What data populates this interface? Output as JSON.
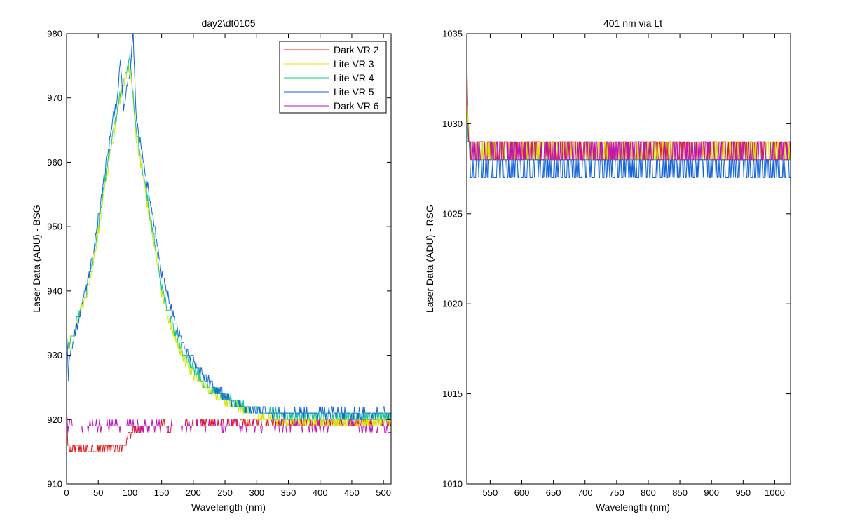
{
  "chart_data": [
    {
      "type": "line",
      "title": "day2\\dt0105",
      "xlabel": "Wavelength (nm)",
      "ylabel": "Laser Data (ADU) - BSG",
      "xlim": [
        0,
        512
      ],
      "ylim": [
        910,
        980
      ],
      "xticks": [
        0,
        50,
        100,
        150,
        200,
        250,
        300,
        350,
        400,
        450,
        500
      ],
      "yticks": [
        910,
        920,
        930,
        940,
        950,
        960,
        970,
        980
      ],
      "legend_position": "top-right",
      "series": [
        {
          "name": "Dark VR 2",
          "color": "#e31a1c",
          "x": [
            0,
            2,
            5,
            10,
            20,
            30,
            40,
            50,
            60,
            70,
            80,
            85,
            90,
            95,
            100,
            110,
            120,
            150,
            200,
            250,
            300,
            350,
            400,
            450,
            500,
            512
          ],
          "y": [
            921,
            916,
            915,
            915.5,
            915.5,
            915.5,
            915.5,
            915.5,
            915.5,
            915.5,
            915.5,
            915.5,
            915.5,
            917,
            918,
            918.5,
            919,
            919,
            919,
            919.5,
            919.5,
            919.5,
            919.5,
            919.5,
            919.5,
            919.5
          ],
          "noise": 0.6
        },
        {
          "name": "Lite VR 3",
          "color": "#d4e600",
          "x": [
            0,
            5,
            10,
            20,
            30,
            40,
            50,
            60,
            70,
            80,
            90,
            100,
            110,
            120,
            130,
            140,
            150,
            160,
            170,
            180,
            190,
            200,
            220,
            240,
            260,
            280,
            300,
            330,
            360,
            400,
            450,
            500,
            512
          ],
          "y": [
            931,
            932,
            933,
            936,
            939,
            943,
            949,
            956,
            962,
            967,
            972,
            975,
            964,
            958,
            952,
            946,
            940,
            936,
            933,
            930.5,
            928.5,
            927,
            925,
            923.5,
            922.5,
            921.5,
            920.5,
            920,
            919.5,
            919.5,
            919.5,
            919.5,
            919.5
          ],
          "noise": 0.7
        },
        {
          "name": "Lite VR 4",
          "color": "#12c98a",
          "x": [
            0,
            5,
            10,
            20,
            30,
            40,
            50,
            60,
            70,
            80,
            90,
            100,
            110,
            120,
            130,
            140,
            150,
            160,
            170,
            180,
            190,
            200,
            220,
            240,
            260,
            280,
            300,
            330,
            360,
            400,
            450,
            500,
            512
          ],
          "y": [
            931,
            932,
            933,
            936.5,
            939.5,
            944,
            950,
            957,
            963,
            968,
            973,
            976,
            965,
            959,
            953,
            947,
            941,
            937,
            934,
            931.5,
            929.5,
            928,
            925.5,
            924,
            923,
            922,
            921.5,
            921,
            920.5,
            920.5,
            920.5,
            920.5,
            920.5
          ],
          "noise": 0.7
        },
        {
          "name": "Lite VR 5",
          "color": "#1565d8",
          "x": [
            0,
            3,
            5,
            10,
            20,
            30,
            40,
            50,
            55,
            60,
            70,
            80,
            85,
            90,
            95,
            100,
            105,
            110,
            120,
            130,
            140,
            150,
            160,
            170,
            180,
            190,
            200,
            220,
            240,
            260,
            280,
            300,
            330,
            360,
            400,
            450,
            500,
            512
          ],
          "y": [
            934,
            927,
            930,
            932,
            936,
            940,
            945,
            951,
            955,
            958,
            965,
            970,
            976,
            968,
            972,
            974,
            980,
            967,
            961,
            955,
            949,
            943,
            939,
            935.5,
            932.5,
            930.5,
            929,
            926.5,
            924.5,
            923,
            922,
            921.5,
            921,
            921,
            921,
            921,
            921,
            921
          ],
          "noise": 0.7
        },
        {
          "name": "Dark VR 6",
          "color": "#c013c0",
          "x": [
            0,
            2,
            5,
            10,
            50,
            100,
            150,
            200,
            250,
            300,
            350,
            400,
            450,
            500,
            512
          ],
          "y": [
            922,
            918,
            920,
            919,
            919,
            919,
            919,
            919,
            919,
            919,
            919,
            919,
            919,
            919,
            918
          ],
          "noise": 0.6
        }
      ]
    },
    {
      "type": "line",
      "title": "401 nm via Lt",
      "xlabel": "Wavelength (nm)",
      "ylabel": "Laser Data (ADU) - RSG",
      "xlim": [
        513,
        1025
      ],
      "ylim": [
        1010,
        1035
      ],
      "xticks": [
        550,
        600,
        650,
        700,
        750,
        800,
        850,
        900,
        950,
        1000
      ],
      "yticks": [
        1010,
        1015,
        1020,
        1025,
        1030,
        1035
      ],
      "series": [
        {
          "color": "#e31a1c",
          "x": [
            513,
            515,
            517,
            520,
            1025
          ],
          "y": [
            1034,
            1030,
            1029,
            1028.5,
            1028.5
          ],
          "noise": 0.5
        },
        {
          "color": "#d4e600",
          "x": [
            513,
            517,
            520,
            1025
          ],
          "y": [
            1031,
            1029,
            1028.5,
            1028.5
          ],
          "noise": 0.5
        },
        {
          "color": "#12c98a",
          "x": [
            513,
            520,
            1025
          ],
          "y": [
            1030,
            1028,
            1028
          ],
          "noise": 0.5
        },
        {
          "color": "#1565d8",
          "x": [
            513,
            520,
            1025
          ],
          "y": [
            1030,
            1027.5,
            1027.5
          ],
          "noise": 0.5
        },
        {
          "color": "#c013c0",
          "x": [
            513,
            520,
            1025
          ],
          "y": [
            1030,
            1028.5,
            1028.5
          ],
          "noise": 0.5
        }
      ]
    }
  ]
}
